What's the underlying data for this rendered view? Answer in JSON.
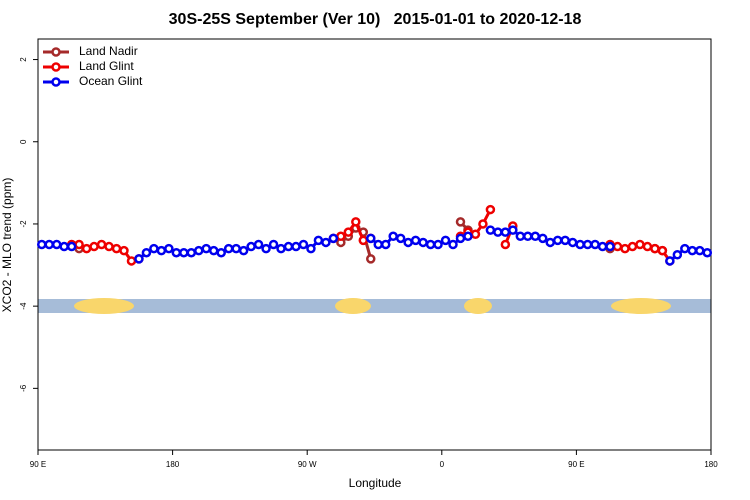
{
  "chart_data": {
    "type": "line",
    "title": "30S-25S September (Ver 10)   2015-01-01 to 2020-12-18",
    "x_label": "Longitude",
    "y_label": "XCO2 - MLO trend (ppm)",
    "x": [
      92.5,
      97.5,
      102.5,
      107.5,
      112.5,
      117.5,
      122.5,
      127.5,
      132.5,
      137.5,
      142.5,
      147.5,
      152.5,
      157.5,
      162.5,
      167.5,
      172.5,
      177.5,
      182.5,
      187.5,
      192.5,
      197.5,
      202.5,
      207.5,
      212.5,
      217.5,
      222.5,
      227.5,
      232.5,
      237.5,
      242.5,
      247.5,
      252.5,
      257.5,
      262.5,
      267.5,
      272.5,
      277.5,
      282.5,
      287.5,
      292.5,
      297.5,
      302.5,
      307.5,
      312.5,
      317.5,
      322.5,
      327.5,
      332.5,
      337.5,
      342.5,
      347.5,
      352.5,
      357.5,
      362.5,
      367.5,
      372.5,
      377.5,
      382.5,
      387.5,
      392.5,
      397.5,
      402.5,
      407.5,
      412.5,
      417.5,
      422.5,
      427.5,
      432.5,
      437.5,
      442.5,
      447.5,
      452.5,
      457.5,
      462.5,
      467.5,
      472.5,
      477.5,
      482.5,
      487.5,
      492.5,
      497.5,
      502.5,
      507.5,
      512.5,
      517.5,
      522.5,
      527.5,
      532.5,
      537.5
    ],
    "xlim": [
      90,
      540
    ],
    "xticks": [
      {
        "value": 90,
        "label": "90 E"
      },
      {
        "value": 180,
        "label": "180"
      },
      {
        "value": 270,
        "label": "90 W"
      },
      {
        "value": 360,
        "label": "0"
      },
      {
        "value": 450,
        "label": "90 E"
      },
      {
        "value": 540,
        "label": "180"
      }
    ],
    "ylim": [
      -7.5,
      2.5
    ],
    "yticks": [
      -6,
      -4,
      -2,
      0,
      2
    ],
    "legend": "top-left",
    "series": [
      {
        "name": "Land Nadir",
        "color": "#a52a2a",
        "values": [
          null,
          null,
          null,
          null,
          null,
          -2.6,
          null,
          null,
          null,
          null,
          null,
          null,
          null,
          null,
          null,
          null,
          null,
          null,
          null,
          null,
          null,
          null,
          null,
          null,
          null,
          null,
          null,
          null,
          null,
          null,
          null,
          null,
          null,
          null,
          null,
          null,
          null,
          null,
          null,
          null,
          -2.45,
          -2.3,
          -2.1,
          -2.2,
          -2.85,
          null,
          null,
          null,
          null,
          null,
          null,
          null,
          null,
          null,
          null,
          null,
          -1.95,
          -2.15,
          null,
          null,
          null,
          null,
          null,
          null,
          null,
          null,
          null,
          null,
          null,
          null,
          null,
          null,
          null,
          null,
          null,
          null,
          -2.6,
          null,
          null,
          null,
          null,
          null,
          -2.6,
          -2.65,
          null,
          null,
          null,
          null,
          null,
          null
        ]
      },
      {
        "name": "Land Glint",
        "color": "#ee0000",
        "values": [
          null,
          null,
          null,
          null,
          -2.5,
          -2.5,
          -2.6,
          -2.55,
          -2.5,
          -2.55,
          -2.6,
          -2.65,
          -2.9,
          -2.85,
          null,
          null,
          null,
          null,
          null,
          null,
          null,
          null,
          null,
          null,
          null,
          null,
          null,
          null,
          null,
          null,
          null,
          null,
          null,
          null,
          null,
          null,
          null,
          null,
          null,
          -2.35,
          -2.3,
          -2.2,
          -1.95,
          -2.4,
          -2.35,
          null,
          null,
          null,
          null,
          null,
          null,
          null,
          null,
          null,
          null,
          null,
          -2.3,
          -2.2,
          -2.25,
          -2.0,
          -1.65,
          null,
          -2.5,
          -2.05,
          null,
          null,
          null,
          null,
          null,
          null,
          null,
          null,
          null,
          null,
          null,
          null,
          -2.5,
          -2.55,
          -2.6,
          -2.55,
          -2.5,
          -2.55,
          -2.6,
          -2.65,
          -2.9,
          null,
          null,
          null,
          null,
          null
        ]
      },
      {
        "name": "Ocean Glint",
        "color": "#0000ee",
        "values": [
          -2.5,
          -2.5,
          -2.5,
          -2.55,
          -2.55,
          null,
          null,
          null,
          null,
          null,
          null,
          null,
          null,
          -2.85,
          -2.7,
          -2.6,
          -2.65,
          -2.6,
          -2.7,
          -2.7,
          -2.7,
          -2.65,
          -2.6,
          -2.65,
          -2.7,
          -2.6,
          -2.6,
          -2.65,
          -2.55,
          -2.5,
          -2.6,
          -2.5,
          -2.6,
          -2.55,
          -2.55,
          -2.5,
          -2.6,
          -2.4,
          -2.45,
          -2.35,
          null,
          null,
          null,
          null,
          -2.35,
          -2.5,
          -2.5,
          -2.3,
          -2.35,
          -2.45,
          -2.4,
          -2.45,
          -2.5,
          -2.5,
          -2.4,
          -2.5,
          -2.35,
          -2.3,
          null,
          null,
          -2.15,
          -2.2,
          -2.2,
          -2.15,
          -2.3,
          -2.3,
          -2.3,
          -2.35,
          -2.45,
          -2.4,
          -2.4,
          -2.45,
          -2.5,
          -2.5,
          -2.5,
          -2.55,
          -2.55,
          null,
          null,
          null,
          null,
          null,
          null,
          null,
          -2.9,
          -2.75,
          -2.6,
          -2.65,
          -2.65,
          -2.7
        ]
      }
    ]
  }
}
